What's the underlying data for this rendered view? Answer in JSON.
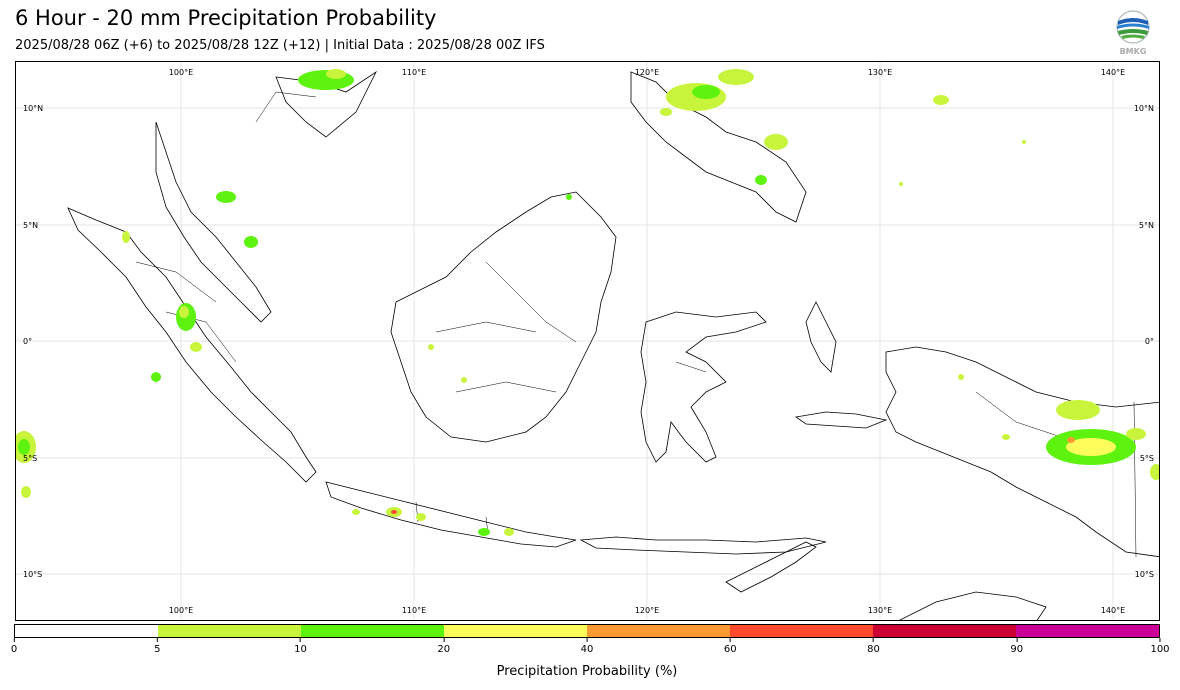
{
  "title": "6 Hour - 20 mm Precipitation Probability",
  "subtitle": "2025/08/28 06Z (+6) to 2025/08/28 12Z (+12) | Initial Data : 2025/08/28 00Z IFS",
  "logo": {
    "icon": "bmkg-logo-icon",
    "text": "BMKG"
  },
  "map": {
    "region": "Indonesia",
    "lon_labels_top": [
      "100°E",
      "110°E",
      "120°E",
      "130°E",
      "140°E"
    ],
    "lon_labels_bottom": [
      "100°E",
      "110°E",
      "120°E",
      "130°E",
      "140°E"
    ],
    "lat_labels_left": [
      "10°N",
      "5°N",
      "0°",
      "5°S",
      "10°S"
    ],
    "lat_labels_right": [
      "10°N",
      "5°N",
      "0°",
      "5°S",
      "10°S"
    ],
    "lon_values": [
      100,
      110,
      120,
      130,
      140
    ],
    "lat_values": [
      10,
      5,
      0,
      -5,
      -10
    ],
    "lon_range": [
      93,
      142
    ],
    "lat_range": [
      -12,
      11.5
    ],
    "grid": true
  },
  "colorbar": {
    "label": "Precipitation Probability (%)",
    "ticks": [
      "0",
      "5",
      "10",
      "20",
      "40",
      "60",
      "80",
      "90",
      "100"
    ],
    "colors": [
      "#ffffff",
      "#c8f53c",
      "#5ef20f",
      "#fcfc5a",
      "#ff9a33",
      "#ff4a2d",
      "#cc0033",
      "#cc0099"
    ]
  }
}
